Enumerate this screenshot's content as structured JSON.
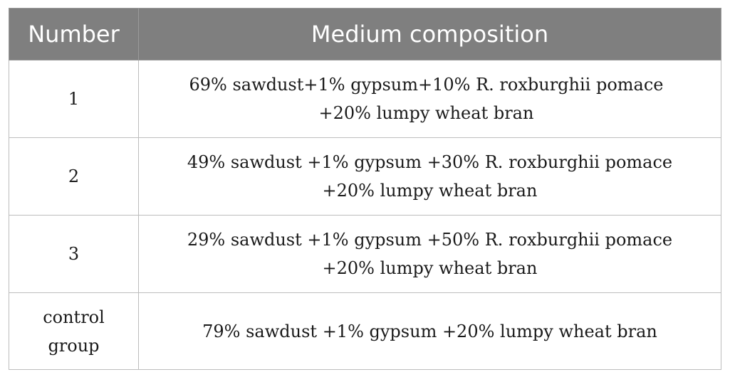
{
  "table": {
    "headers": [
      "Number",
      "Medium composition"
    ],
    "rows": [
      {
        "number": "1",
        "composition": "69% sawdust+1% gypsum+10% R. roxburghii pomace +20% lumpy wheat bran"
      },
      {
        "number": "2",
        "composition": "49% sawdust +1% gypsum +30% R. roxburghii pomace +20% lumpy wheat bran"
      },
      {
        "number": "3",
        "composition": "29% sawdust +1% gypsum +50% R. roxburghii pomace +20% lumpy wheat bran"
      },
      {
        "number": "control group",
        "composition": "79% sawdust +1% gypsum +20% lumpy wheat bran"
      }
    ]
  },
  "colors": {
    "header_background": "#7f7f7f",
    "header_text": "#ffffff",
    "border": "#bdbdbd"
  }
}
